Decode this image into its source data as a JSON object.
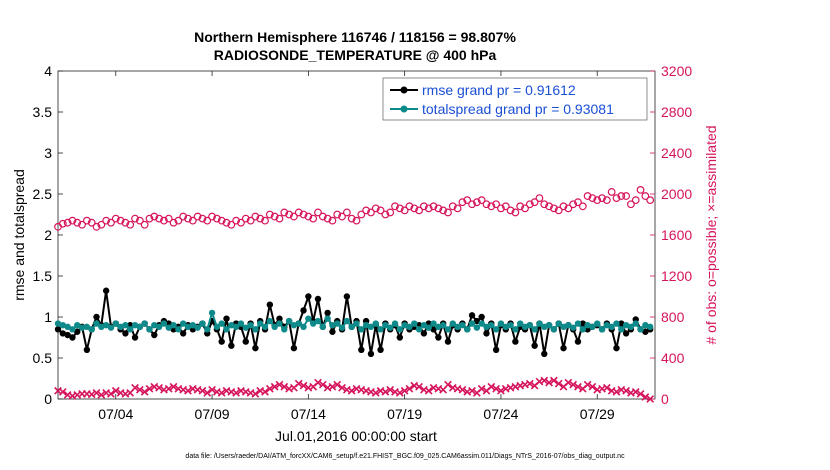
{
  "chart_data": {
    "type": "line",
    "title_line1": "Northern Hemisphere 116746 / 118156 = 98.807%",
    "title_line2": "RADIOSONDE_TEMPERATURE @ 400 hPa",
    "xlabel": "Jul.01,2016 00:00:00 start",
    "ylabel_left": "rmse and totalspread",
    "ylabel_right": "# of obs: o=possible; ×=assimilated",
    "footnote": "data file: /Users/raeder/DAI/ATM_forcXX/CAM6_setup/f.e21.FHIST_BGC.f09_025.CAM6assim.011/Diags_NTrS_2016-07/obs_diag_output.nc",
    "x_ticks": [
      {
        "day": 4,
        "label": "07/04"
      },
      {
        "day": 9,
        "label": "07/09"
      },
      {
        "day": 14,
        "label": "07/14"
      },
      {
        "day": 19,
        "label": "07/19"
      },
      {
        "day": 24,
        "label": "07/24"
      },
      {
        "day": 29,
        "label": "07/29"
      }
    ],
    "xlim": [
      1,
      32
    ],
    "ylim_left": [
      0,
      4
    ],
    "yticks_left": [
      "0",
      "0.5",
      "1",
      "1.5",
      "2",
      "2.5",
      "3",
      "3.5",
      "4"
    ],
    "ylim_right": [
      0,
      3200
    ],
    "yticks_right": [
      "0",
      "400",
      "800",
      "1200",
      "1600",
      "2000",
      "2400",
      "2800",
      "3200"
    ],
    "steps_per_day": 4,
    "series": [
      {
        "name": "rmse grand pr = 0.91612",
        "color": "#000000",
        "axis": "left",
        "values": [
          0.85,
          0.8,
          0.78,
          0.75,
          0.82,
          0.88,
          0.6,
          0.85,
          1.0,
          0.9,
          1.32,
          0.88,
          0.92,
          0.85,
          0.8,
          0.9,
          0.75,
          0.88,
          0.92,
          0.85,
          0.78,
          0.9,
          0.95,
          0.92,
          0.85,
          0.88,
          0.8,
          0.9,
          0.85,
          0.88,
          0.92,
          0.8,
          0.95,
          0.85,
          0.7,
          0.98,
          0.65,
          0.92,
          0.88,
          0.7,
          0.92,
          0.62,
          0.95,
          0.85,
          1.15,
          0.9,
          0.98,
          0.88,
          0.95,
          0.62,
          0.92,
          1.08,
          1.25,
          0.95,
          1.22,
          0.88,
          1.05,
          0.82,
          0.95,
          0.85,
          1.25,
          0.88,
          0.95,
          0.6,
          0.95,
          0.55,
          0.9,
          0.6,
          0.92,
          0.85,
          0.9,
          0.75,
          0.92,
          0.85,
          0.88,
          0.9,
          0.8,
          0.92,
          0.85,
          0.75,
          0.92,
          0.7,
          0.9,
          0.85,
          0.92,
          0.85,
          1.02,
          0.95,
          1.0,
          0.8,
          0.92,
          0.6,
          0.9,
          0.85,
          0.92,
          0.7,
          0.88,
          0.85,
          0.9,
          0.65,
          0.92,
          0.55,
          0.9,
          0.85,
          0.92,
          0.62,
          0.9,
          0.85,
          0.7,
          0.92,
          0.85,
          0.88,
          0.9,
          0.85,
          0.92,
          0.85,
          0.62,
          0.92,
          0.8,
          0.85,
          0.97,
          0.85,
          0.82,
          0.85
        ]
      },
      {
        "name": "totalspread grand pr = 0.93081",
        "color": "#0f8a8a",
        "axis": "left",
        "values": [
          0.92,
          0.9,
          0.88,
          0.85,
          0.9,
          0.87,
          0.88,
          0.85,
          0.92,
          0.88,
          0.9,
          0.87,
          0.92,
          0.88,
          0.9,
          0.85,
          0.9,
          0.88,
          0.92,
          0.85,
          0.9,
          0.88,
          0.92,
          0.87,
          0.9,
          0.85,
          0.92,
          0.88,
          0.9,
          0.87,
          0.92,
          0.85,
          1.05,
          0.88,
          0.92,
          0.85,
          0.9,
          0.88,
          0.92,
          0.87,
          0.9,
          0.85,
          0.92,
          0.88,
          0.95,
          0.88,
          0.92,
          0.85,
          0.95,
          0.9,
          0.92,
          0.88,
          0.98,
          0.92,
          0.95,
          0.88,
          0.98,
          0.9,
          0.92,
          0.87,
          0.95,
          0.88,
          0.92,
          0.85,
          0.9,
          0.88,
          0.92,
          0.85,
          0.9,
          0.87,
          0.92,
          0.85,
          0.9,
          0.88,
          0.92,
          0.85,
          0.9,
          0.87,
          0.92,
          0.88,
          0.9,
          0.85,
          0.92,
          0.88,
          0.9,
          0.85,
          0.92,
          0.87,
          0.92,
          0.88,
          0.9,
          0.85,
          0.92,
          0.88,
          0.9,
          0.85,
          0.92,
          0.88,
          0.9,
          0.85,
          0.92,
          0.88,
          0.9,
          0.85,
          0.92,
          0.88,
          0.9,
          0.87,
          0.92,
          0.85,
          0.9,
          0.88,
          0.92,
          0.85,
          0.9,
          0.88,
          0.92,
          0.85,
          0.9,
          0.88,
          0.92,
          0.85,
          0.9,
          0.88
        ]
      },
      {
        "name": "obs possible",
        "color": "#d6145c",
        "axis": "right",
        "marker": "circle",
        "values": [
          1680,
          1710,
          1720,
          1740,
          1720,
          1700,
          1740,
          1720,
          1680,
          1700,
          1740,
          1720,
          1760,
          1740,
          1720,
          1700,
          1760,
          1740,
          1700,
          1760,
          1780,
          1760,
          1740,
          1760,
          1720,
          1740,
          1780,
          1760,
          1740,
          1780,
          1760,
          1740,
          1780,
          1760,
          1740,
          1720,
          1700,
          1740,
          1720,
          1760,
          1740,
          1780,
          1760,
          1740,
          1800,
          1780,
          1760,
          1820,
          1800,
          1780,
          1820,
          1800,
          1780,
          1760,
          1820,
          1780,
          1760,
          1740,
          1800,
          1780,
          1820,
          1760,
          1740,
          1800,
          1840,
          1820,
          1860,
          1840,
          1800,
          1820,
          1880,
          1860,
          1840,
          1880,
          1860,
          1840,
          1880,
          1860,
          1880,
          1860,
          1840,
          1820,
          1880,
          1860,
          1920,
          1940,
          1900,
          1920,
          1940,
          1900,
          1880,
          1900,
          1860,
          1880,
          1840,
          1820,
          1880,
          1860,
          1900,
          1920,
          1960,
          1900,
          1880,
          1860,
          1840,
          1880,
          1860,
          1900,
          1920,
          1880,
          1980,
          1960,
          1940,
          1960,
          1940,
          2020,
          1960,
          1980,
          1980,
          1900,
          1940,
          2040,
          1980,
          1940
        ]
      },
      {
        "name": "obs assimilated",
        "color": "#d6145c",
        "axis": "right",
        "marker": "x",
        "values": [
          80,
          70,
          40,
          30,
          40,
          50,
          50,
          45,
          60,
          40,
          60,
          50,
          80,
          60,
          50,
          60,
          110,
          90,
          70,
          100,
          120,
          110,
          90,
          100,
          120,
          100,
          90,
          80,
          100,
          90,
          80,
          60,
          90,
          70,
          60,
          80,
          70,
          60,
          80,
          70,
          60,
          50,
          80,
          70,
          100,
          120,
          140,
          120,
          100,
          110,
          150,
          130,
          110,
          120,
          160,
          140,
          110,
          120,
          140,
          110,
          90,
          80,
          100,
          90,
          80,
          70,
          60,
          80,
          70,
          90,
          70,
          60,
          80,
          100,
          130,
          120,
          90,
          80,
          110,
          100,
          90,
          140,
          110,
          100,
          90,
          70,
          80,
          60,
          100,
          80,
          120,
          100,
          80,
          100,
          110,
          120,
          130,
          140,
          150,
          130,
          170,
          180,
          160,
          180,
          150,
          120,
          160,
          140,
          120,
          100,
          140,
          120,
          90,
          100,
          110,
          80,
          70,
          90,
          80,
          60,
          70,
          50,
          20,
          0
        ]
      }
    ]
  }
}
